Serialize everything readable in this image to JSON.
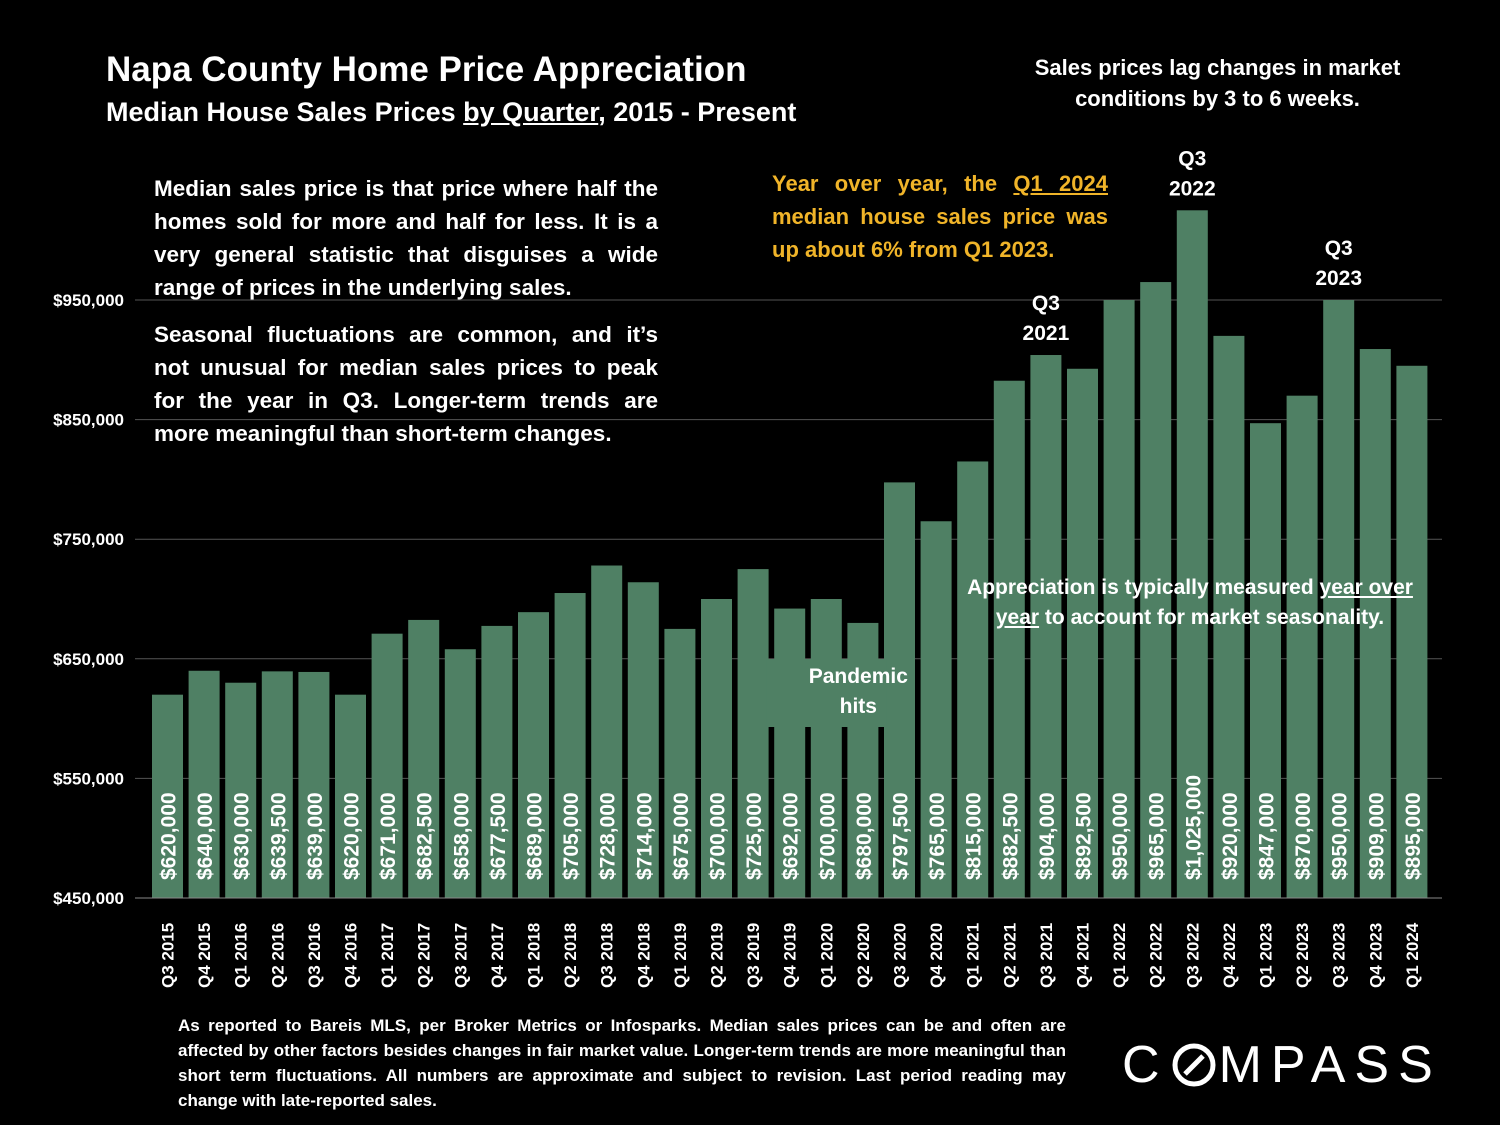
{
  "title": "Napa County Home Price Appreciation",
  "subtitle": {
    "prefix": "Median House Sales Prices ",
    "underlined": "by Quarter",
    "suffix": ", 2015 - Present"
  },
  "lag_note": "Sales prices lag changes in market conditions by 3 to 6 weeks.",
  "para1": "Median sales price is that price where half the homes sold for more and half for less. It is a very general statistic that disguises a wide range of prices in the underlying sales.",
  "para2": "Seasonal fluctuations are common, and it’s not unusual for median sales prices to peak for the year in Q3. Longer-term trends are more meaningful than short-term changes.",
  "yoy_note": {
    "prefix": "Year over year, the ",
    "underlined": "Q1 2024",
    "suffix": " median house sales price was up about 6% from Q1 2023."
  },
  "appreciation_note": {
    "prefix": "Appreciation is typically measured ",
    "underlined": "year over year",
    "suffix": " to account for market seasonality."
  },
  "footnote": "As reported to Bareis MLS, per  Broker Metrics or Infosparks. Median sales prices can be and often are affected by other factors besides changes in fair market value. Longer-term trends are more meaningful than short term fluctuations. All numbers are approximate and subject to revision. Last period reading may change with late-reported sales.",
  "logo": {
    "before": "C",
    "after": "MPASS"
  },
  "colors": {
    "bar": "#4f8064",
    "background": "#000000",
    "text": "#ffffff",
    "highlight": "#f0b429",
    "grid": "#555555"
  },
  "chart_data": {
    "type": "bar",
    "title": "Napa County Home Price Appreciation",
    "ylim": [
      450000,
      950000
    ],
    "yticks": [
      450000,
      550000,
      650000,
      750000,
      850000,
      950000
    ],
    "ytick_labels": [
      "$450,000",
      "$550,000",
      "$650,000",
      "$750,000",
      "$850,000",
      "$950,000"
    ],
    "categories": [
      "Q3 2015",
      "Q4 2015",
      "Q1 2016",
      "Q2 2016",
      "Q3 2016",
      "Q4 2016",
      "Q1 2017",
      "Q2 2017",
      "Q3 2017",
      "Q4 2017",
      "Q1 2018",
      "Q2 2018",
      "Q3 2018",
      "Q4 2018",
      "Q1 2019",
      "Q2 2019",
      "Q3 2019",
      "Q4 2019",
      "Q1 2020",
      "Q2 2020",
      "Q3 2020",
      "Q4 2020",
      "Q1 2021",
      "Q2 2021",
      "Q3 2021",
      "Q4 2021",
      "Q1 2022",
      "Q2 2022",
      "Q3 2022",
      "Q4 2022",
      "Q1 2023",
      "Q2 2023",
      "Q3 2023",
      "Q4 2023",
      "Q1 2024"
    ],
    "values": [
      620000,
      640000,
      630000,
      639500,
      639000,
      620000,
      671000,
      682500,
      658000,
      677500,
      689000,
      705000,
      728000,
      714000,
      675000,
      700000,
      725000,
      692000,
      700000,
      680000,
      797500,
      765000,
      815000,
      882500,
      904000,
      892500,
      950000,
      965000,
      1025000,
      920000,
      847000,
      870000,
      950000,
      909000,
      895000
    ],
    "value_labels": [
      "$620,000",
      "$640,000",
      "$630,000",
      "$639,500",
      "$639,000",
      "$620,000",
      "$671,000",
      "$682,500",
      "$658,000",
      "$677,500",
      "$689,000",
      "$705,000",
      "$728,000",
      "$714,000",
      "$675,000",
      "$700,000",
      "$725,000",
      "$692,000",
      "$700,000",
      "$680,000",
      "$797,500",
      "$765,000",
      "$815,000",
      "$882,500",
      "$904,000",
      "$892,500",
      "$950,000",
      "$965,000",
      "$1,025,000",
      "$920,000",
      "$847,000",
      "$870,000",
      "$950,000",
      "$909,000",
      "$895,000"
    ],
    "annotations": [
      {
        "category": "Q3 2021",
        "lines": [
          "Q3",
          "2021"
        ]
      },
      {
        "category": "Q3 2022",
        "lines": [
          "Q3",
          "2022"
        ]
      },
      {
        "category": "Q3 2023",
        "lines": [
          "Q3",
          "2023"
        ]
      },
      {
        "category": "Q1 2020",
        "lines": [
          "Pandemic",
          "hits"
        ]
      }
    ]
  }
}
